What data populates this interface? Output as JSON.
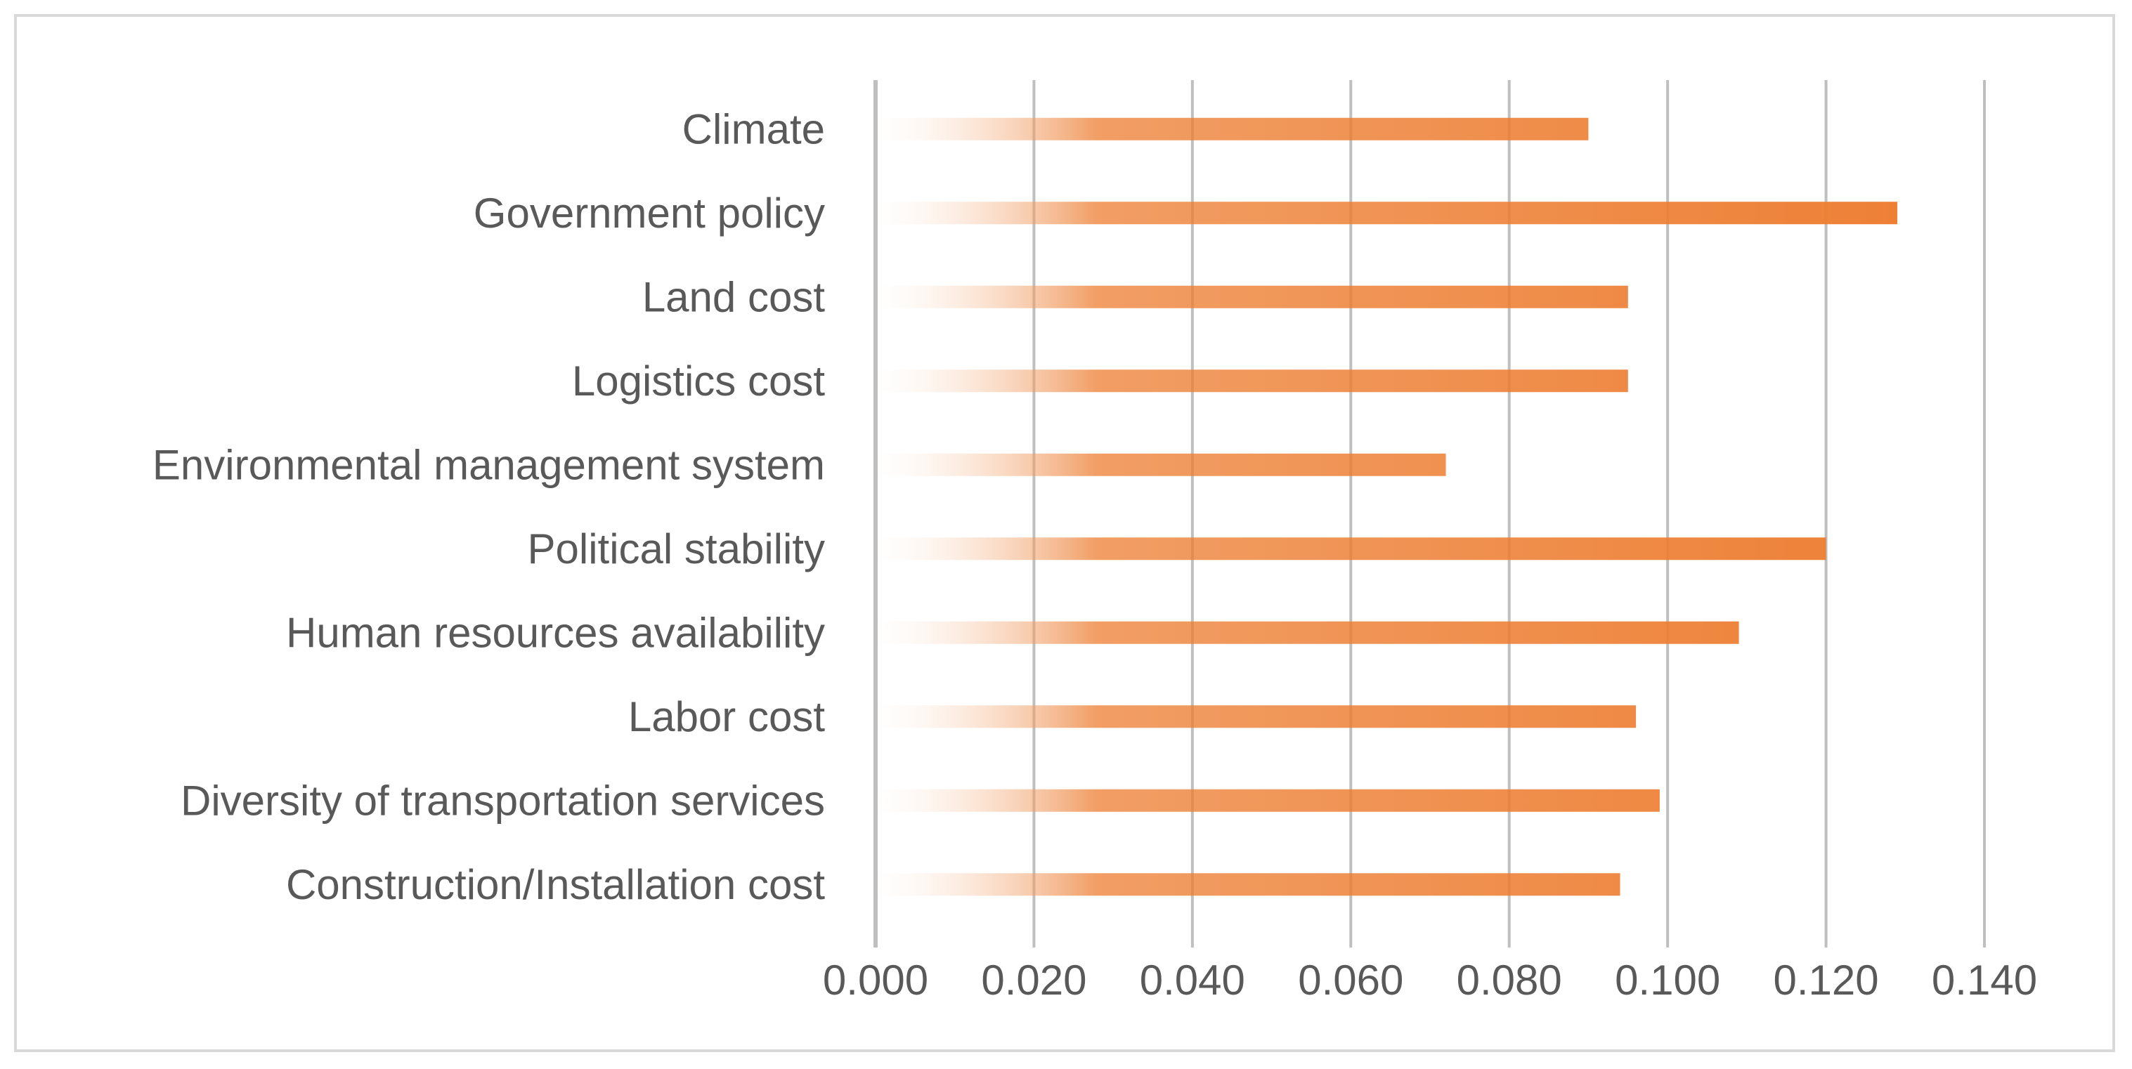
{
  "chart_data": {
    "type": "bar",
    "orientation": "horizontal",
    "title": "",
    "xlabel": "",
    "ylabel": "",
    "categories": [
      "Climate",
      "Government policy",
      "Land cost",
      "Logistics cost",
      "Environmental management system",
      "Political stability",
      "Human resources availability",
      "Labor cost",
      "Diversity of transportation services",
      "Construction/Installation cost"
    ],
    "values": [
      0.09,
      0.129,
      0.095,
      0.095,
      0.072,
      0.12,
      0.109,
      0.096,
      0.099,
      0.094
    ],
    "xlim": [
      0,
      0.14
    ],
    "xticks": [
      "0.000",
      "0.020",
      "0.040",
      "0.060",
      "0.080",
      "0.100",
      "0.120",
      "0.140"
    ],
    "grid": true,
    "legend": "none",
    "colors": {
      "bar": "#ed7d31",
      "bar_fade": "#fbe3d3",
      "grid": "#bfbfbf",
      "axis": "#bfbfbf",
      "text": "#595959",
      "frame": "#d9d9d9"
    }
  }
}
